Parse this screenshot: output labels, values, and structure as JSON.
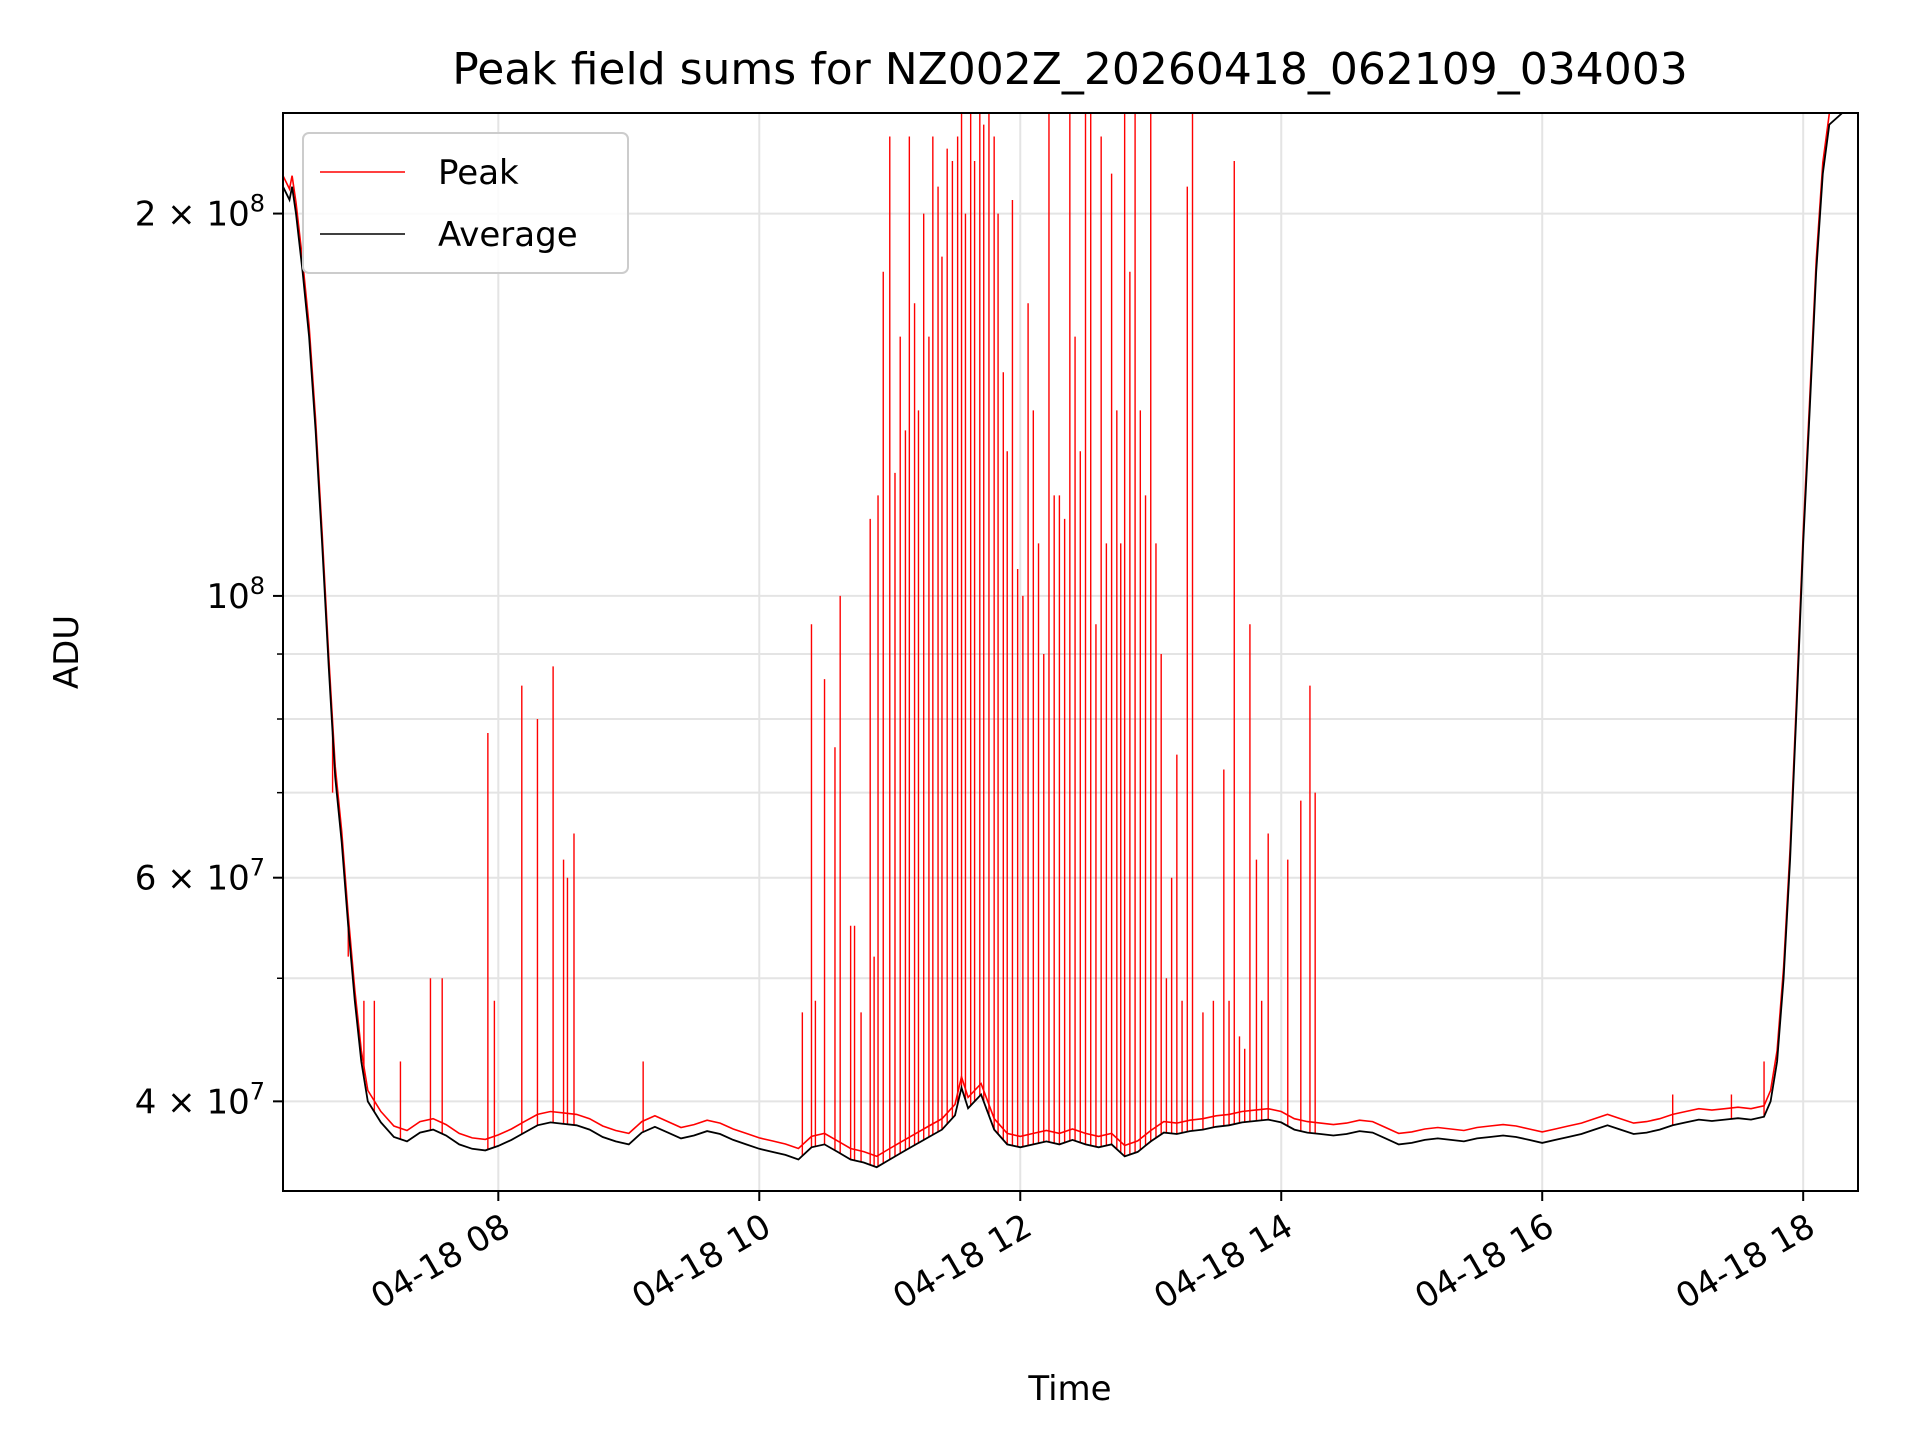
{
  "chart_data": {
    "type": "line",
    "title": "Peak field sums for NZ002Z_20260418_062109_034003",
    "xlabel": "Time",
    "ylabel": "ADU",
    "y_scale": "log",
    "ylim": [
      34000000,
      240000000
    ],
    "xlim_hours": [
      6.35,
      18.42
    ],
    "grid": true,
    "legend_location": "upper-left",
    "x_ticks": [
      {
        "hour": 8,
        "label": "04-18 08"
      },
      {
        "hour": 10,
        "label": "04-18 10"
      },
      {
        "hour": 12,
        "label": "04-18 12"
      },
      {
        "hour": 14,
        "label": "04-18 14"
      },
      {
        "hour": 16,
        "label": "04-18 16"
      },
      {
        "hour": 18,
        "label": "04-18 18"
      }
    ],
    "y_ticks": [
      {
        "value": 40000000,
        "base": "4 × 10",
        "exp": "7"
      },
      {
        "value": 60000000,
        "base": "6 × 10",
        "exp": "7"
      },
      {
        "value": 100000000,
        "base": "10",
        "exp": "8"
      },
      {
        "value": 200000000,
        "base": "2 × 10",
        "exp": "8"
      }
    ],
    "y_minor_ticks": [
      50000000,
      70000000,
      80000000,
      90000000
    ],
    "series": [
      {
        "name": "Peak",
        "color": "#ff0000",
        "baseline_note": "Peak follows Average closely except at spikes",
        "spikes": [
          [
            6.73,
            70000000
          ],
          [
            6.85,
            52000000
          ],
          [
            6.97,
            48000000
          ],
          [
            7.05,
            48000000
          ],
          [
            7.25,
            43000000
          ],
          [
            7.48,
            50000000
          ],
          [
            7.57,
            50000000
          ],
          [
            7.92,
            78000000
          ],
          [
            7.97,
            48000000
          ],
          [
            8.18,
            85000000
          ],
          [
            8.3,
            80000000
          ],
          [
            8.42,
            88000000
          ],
          [
            8.5,
            62000000
          ],
          [
            8.53,
            60000000
          ],
          [
            8.58,
            65000000
          ],
          [
            9.11,
            43000000
          ],
          [
            10.33,
            47000000
          ],
          [
            10.4,
            95000000
          ],
          [
            10.43,
            48000000
          ],
          [
            10.5,
            86000000
          ],
          [
            10.58,
            76000000
          ],
          [
            10.62,
            100000000
          ],
          [
            10.7,
            55000000
          ],
          [
            10.73,
            55000000
          ],
          [
            10.78,
            47000000
          ],
          [
            10.85,
            115000000
          ],
          [
            10.88,
            52000000
          ],
          [
            10.91,
            120000000
          ],
          [
            10.95,
            180000000
          ],
          [
            11.0,
            230000000
          ],
          [
            11.04,
            125000000
          ],
          [
            11.08,
            160000000
          ],
          [
            11.12,
            135000000
          ],
          [
            11.15,
            230000000
          ],
          [
            11.19,
            170000000
          ],
          [
            11.22,
            140000000
          ],
          [
            11.26,
            200000000
          ],
          [
            11.3,
            160000000
          ],
          [
            11.33,
            230000000
          ],
          [
            11.37,
            210000000
          ],
          [
            11.4,
            185000000
          ],
          [
            11.44,
            225000000
          ],
          [
            11.48,
            220000000
          ],
          [
            11.52,
            230000000
          ],
          [
            11.55,
            240000000
          ],
          [
            11.58,
            200000000
          ],
          [
            11.62,
            240000000
          ],
          [
            11.65,
            220000000
          ],
          [
            11.69,
            240000000
          ],
          [
            11.72,
            235000000
          ],
          [
            11.76,
            240000000
          ],
          [
            11.8,
            230000000
          ],
          [
            11.83,
            200000000
          ],
          [
            11.87,
            150000000
          ],
          [
            11.9,
            130000000
          ],
          [
            11.94,
            205000000
          ],
          [
            11.98,
            105000000
          ],
          [
            12.02,
            100000000
          ],
          [
            12.06,
            170000000
          ],
          [
            12.1,
            140000000
          ],
          [
            12.14,
            110000000
          ],
          [
            12.18,
            90000000
          ],
          [
            12.22,
            240000000
          ],
          [
            12.26,
            120000000
          ],
          [
            12.3,
            120000000
          ],
          [
            12.34,
            115000000
          ],
          [
            12.38,
            240000000
          ],
          [
            12.42,
            160000000
          ],
          [
            12.46,
            130000000
          ],
          [
            12.5,
            240000000
          ],
          [
            12.54,
            240000000
          ],
          [
            12.58,
            95000000
          ],
          [
            12.62,
            230000000
          ],
          [
            12.66,
            110000000
          ],
          [
            12.7,
            215000000
          ],
          [
            12.74,
            140000000
          ],
          [
            12.77,
            110000000
          ],
          [
            12.8,
            240000000
          ],
          [
            12.84,
            180000000
          ],
          [
            12.88,
            240000000
          ],
          [
            12.92,
            140000000
          ],
          [
            12.96,
            120000000
          ],
          [
            13.0,
            240000000
          ],
          [
            13.04,
            110000000
          ],
          [
            13.08,
            90000000
          ],
          [
            13.12,
            50000000
          ],
          [
            13.16,
            60000000
          ],
          [
            13.2,
            75000000
          ],
          [
            13.24,
            48000000
          ],
          [
            13.28,
            210000000
          ],
          [
            13.32,
            240000000
          ],
          [
            13.4,
            47000000
          ],
          [
            13.48,
            48000000
          ],
          [
            13.56,
            73000000
          ],
          [
            13.6,
            48000000
          ],
          [
            13.64,
            220000000
          ],
          [
            13.68,
            45000000
          ],
          [
            13.72,
            44000000
          ],
          [
            13.76,
            95000000
          ],
          [
            13.81,
            62000000
          ],
          [
            13.85,
            48000000
          ],
          [
            13.9,
            65000000
          ],
          [
            14.05,
            62000000
          ],
          [
            14.15,
            69000000
          ],
          [
            14.22,
            85000000
          ],
          [
            14.26,
            70000000
          ],
          [
            17.0,
            40500000
          ],
          [
            17.45,
            40500000
          ],
          [
            17.7,
            43000000
          ]
        ]
      },
      {
        "name": "Average",
        "color": "#000000",
        "points": [
          [
            6.35,
            210000000
          ],
          [
            6.4,
            205000000
          ],
          [
            6.42,
            210000000
          ],
          [
            6.45,
            200000000
          ],
          [
            6.5,
            180000000
          ],
          [
            6.55,
            160000000
          ],
          [
            6.6,
            135000000
          ],
          [
            6.65,
            110000000
          ],
          [
            6.7,
            88000000
          ],
          [
            6.75,
            72000000
          ],
          [
            6.8,
            64000000
          ],
          [
            6.85,
            55000000
          ],
          [
            6.9,
            48000000
          ],
          [
            6.95,
            43000000
          ],
          [
            7.0,
            40000000
          ],
          [
            7.1,
            38500000
          ],
          [
            7.2,
            37500000
          ],
          [
            7.3,
            37200000
          ],
          [
            7.4,
            37800000
          ],
          [
            7.5,
            38000000
          ],
          [
            7.6,
            37600000
          ],
          [
            7.7,
            37000000
          ],
          [
            7.8,
            36700000
          ],
          [
            7.9,
            36600000
          ],
          [
            8.0,
            36900000
          ],
          [
            8.1,
            37300000
          ],
          [
            8.2,
            37800000
          ],
          [
            8.3,
            38300000
          ],
          [
            8.4,
            38500000
          ],
          [
            8.5,
            38400000
          ],
          [
            8.6,
            38300000
          ],
          [
            8.7,
            38000000
          ],
          [
            8.8,
            37500000
          ],
          [
            8.9,
            37200000
          ],
          [
            9.0,
            37000000
          ],
          [
            9.1,
            37800000
          ],
          [
            9.2,
            38200000
          ],
          [
            9.3,
            37800000
          ],
          [
            9.4,
            37400000
          ],
          [
            9.5,
            37600000
          ],
          [
            9.6,
            37900000
          ],
          [
            9.7,
            37700000
          ],
          [
            9.8,
            37300000
          ],
          [
            9.9,
            37000000
          ],
          [
            10.0,
            36700000
          ],
          [
            10.1,
            36500000
          ],
          [
            10.2,
            36300000
          ],
          [
            10.3,
            36000000
          ],
          [
            10.4,
            36800000
          ],
          [
            10.5,
            37000000
          ],
          [
            10.6,
            36500000
          ],
          [
            10.7,
            36000000
          ],
          [
            10.8,
            35800000
          ],
          [
            10.9,
            35500000
          ],
          [
            11.0,
            36000000
          ],
          [
            11.1,
            36500000
          ],
          [
            11.2,
            37000000
          ],
          [
            11.3,
            37500000
          ],
          [
            11.4,
            38000000
          ],
          [
            11.5,
            39000000
          ],
          [
            11.55,
            41000000
          ],
          [
            11.6,
            39500000
          ],
          [
            11.7,
            40500000
          ],
          [
            11.8,
            38000000
          ],
          [
            11.9,
            37000000
          ],
          [
            12.0,
            36800000
          ],
          [
            12.1,
            37000000
          ],
          [
            12.2,
            37200000
          ],
          [
            12.3,
            37000000
          ],
          [
            12.4,
            37300000
          ],
          [
            12.5,
            37000000
          ],
          [
            12.6,
            36800000
          ],
          [
            12.7,
            37000000
          ],
          [
            12.8,
            36200000
          ],
          [
            12.9,
            36500000
          ],
          [
            13.0,
            37200000
          ],
          [
            13.1,
            37800000
          ],
          [
            13.2,
            37700000
          ],
          [
            13.3,
            37900000
          ],
          [
            13.4,
            38000000
          ],
          [
            13.5,
            38200000
          ],
          [
            13.6,
            38300000
          ],
          [
            13.7,
            38500000
          ],
          [
            13.8,
            38600000
          ],
          [
            13.9,
            38700000
          ],
          [
            14.0,
            38500000
          ],
          [
            14.1,
            38000000
          ],
          [
            14.2,
            37800000
          ],
          [
            14.3,
            37700000
          ],
          [
            14.4,
            37600000
          ],
          [
            14.5,
            37700000
          ],
          [
            14.6,
            37900000
          ],
          [
            14.7,
            37800000
          ],
          [
            14.8,
            37400000
          ],
          [
            14.9,
            37000000
          ],
          [
            15.0,
            37100000
          ],
          [
            15.1,
            37300000
          ],
          [
            15.2,
            37400000
          ],
          [
            15.3,
            37300000
          ],
          [
            15.4,
            37200000
          ],
          [
            15.5,
            37400000
          ],
          [
            15.6,
            37500000
          ],
          [
            15.7,
            37600000
          ],
          [
            15.8,
            37500000
          ],
          [
            15.9,
            37300000
          ],
          [
            16.0,
            37100000
          ],
          [
            16.1,
            37300000
          ],
          [
            16.2,
            37500000
          ],
          [
            16.3,
            37700000
          ],
          [
            16.4,
            38000000
          ],
          [
            16.5,
            38300000
          ],
          [
            16.6,
            38000000
          ],
          [
            16.7,
            37700000
          ],
          [
            16.8,
            37800000
          ],
          [
            16.9,
            38000000
          ],
          [
            17.0,
            38300000
          ],
          [
            17.1,
            38500000
          ],
          [
            17.2,
            38700000
          ],
          [
            17.3,
            38600000
          ],
          [
            17.4,
            38700000
          ],
          [
            17.5,
            38800000
          ],
          [
            17.6,
            38700000
          ],
          [
            17.7,
            38900000
          ],
          [
            17.75,
            40000000
          ],
          [
            17.8,
            43000000
          ],
          [
            17.85,
            50000000
          ],
          [
            17.9,
            62000000
          ],
          [
            17.95,
            82000000
          ],
          [
            18.0,
            110000000
          ],
          [
            18.05,
            140000000
          ],
          [
            18.1,
            180000000
          ],
          [
            18.15,
            215000000
          ],
          [
            18.2,
            235000000
          ],
          [
            18.3,
            240000000
          ],
          [
            18.42,
            240000000
          ]
        ]
      }
    ]
  }
}
